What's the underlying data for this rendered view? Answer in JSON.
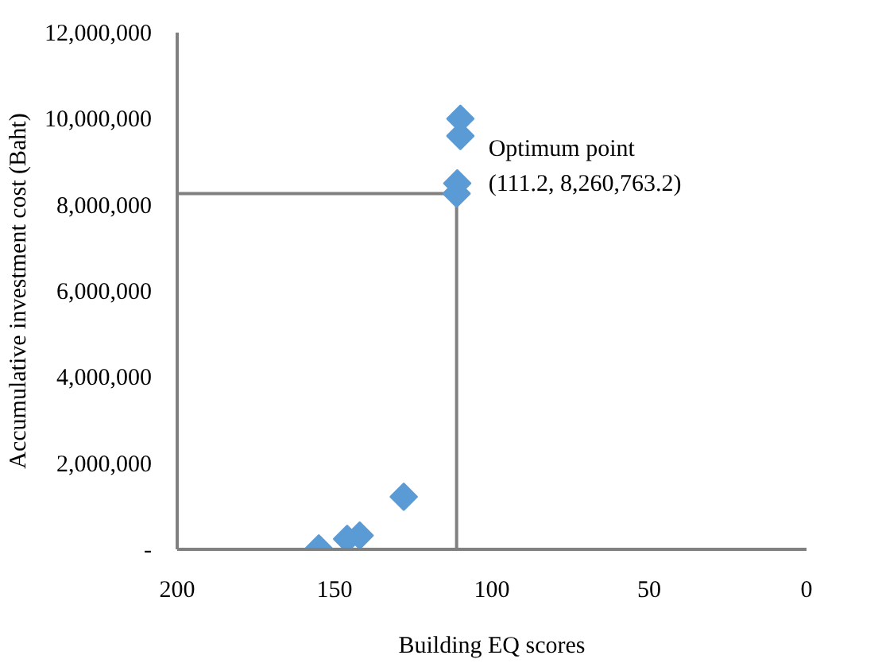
{
  "chart_data": {
    "type": "scatter",
    "xlabel": "Building EQ scores",
    "ylabel": "Accumulative investment cost (Baht)",
    "x": [
      155,
      146,
      142,
      128,
      111.2,
      111,
      110,
      110
    ],
    "series": [
      {
        "color": "#5b9bd5",
        "values": [
          20000,
          240000,
          320000,
          1220000,
          8260763.2,
          8500000,
          9600000,
          10000000
        ]
      }
    ],
    "marker": "diamond",
    "xlim": [
      200,
      0
    ],
    "ylim": [
      0,
      12000000
    ],
    "xticks": [
      200,
      150,
      100,
      50,
      0
    ],
    "yticks": [
      {
        "value": 0,
        "label": "-"
      },
      {
        "value": 2000000,
        "label": "2,000,000"
      },
      {
        "value": 4000000,
        "label": "4,000,000"
      },
      {
        "value": 6000000,
        "label": "6,000,000"
      },
      {
        "value": 8000000,
        "label": "8,000,000"
      },
      {
        "value": 10000000,
        "label": "10,000,000"
      },
      {
        "value": 12000000,
        "label": "12,000,000"
      }
    ],
    "ref_lines": [
      {
        "axis": "x",
        "value": 111.2,
        "color": "#808080"
      },
      {
        "axis": "y",
        "value": 8260763.2,
        "color": "#808080"
      }
    ],
    "annotations": [
      {
        "text": "Optimum point\n (111.2, 8,260,763.2)",
        "x": 111.2,
        "y": 8260763.2
      }
    ],
    "grid": false
  }
}
